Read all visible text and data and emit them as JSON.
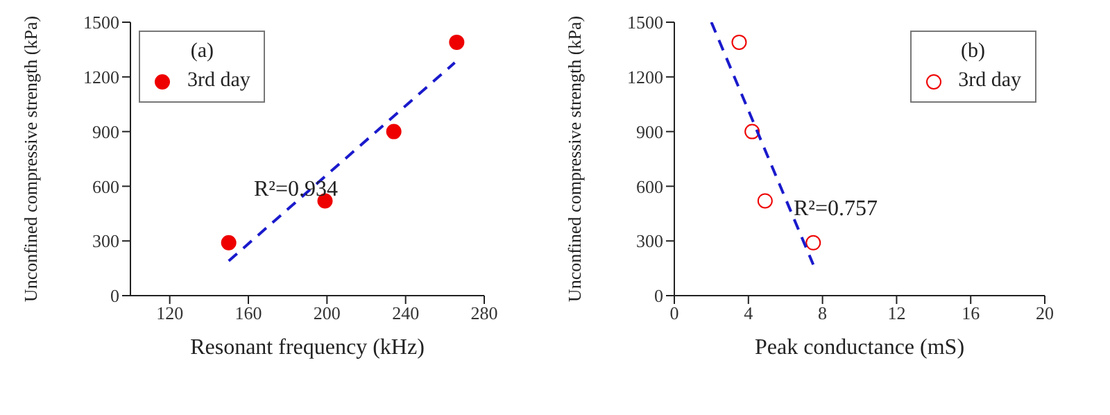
{
  "chart_data": [
    {
      "type": "scatter",
      "xlabel": "Resonant frequency (kHz)",
      "ylabel": "Unconfined compressive strength (kPa)",
      "legend_title": "(a)",
      "legend": "top left",
      "marker": "circle",
      "grid": false,
      "xlim": [
        100,
        280
      ],
      "xticks": [
        120,
        160,
        200,
        240,
        280
      ],
      "ylim": [
        0,
        1500
      ],
      "yticks": [
        0,
        300,
        600,
        900,
        1200,
        1500
      ],
      "series": [
        {
          "name": "3rd day",
          "color": "#ee0000",
          "x": [
            150,
            199,
            234,
            266
          ],
          "values": [
            290,
            520,
            900,
            1390
          ]
        },
        {
          "type": "line",
          "color": "#1a1acc",
          "line_style": "dashed",
          "marker": "none",
          "x": [
            150,
            265
          ],
          "values": [
            190,
            1278
          ]
        }
      ],
      "annotations": [
        "R²=0.934"
      ]
    },
    {
      "type": "scatter",
      "xlabel": "Peak conductance (mS)",
      "ylabel": "Unconfined compressive strength (kPa)",
      "legend_title": "(b)",
      "legend": "top right",
      "marker": "circle",
      "grid": false,
      "xlim": [
        0,
        20
      ],
      "xticks": [
        0,
        4,
        8,
        12,
        16,
        20
      ],
      "ylim": [
        0,
        1500
      ],
      "yticks": [
        0,
        300,
        600,
        900,
        1200,
        1500
      ],
      "series": [
        {
          "name": "3rd day",
          "color": "#ee0000",
          "x": [
            3.5,
            4.2,
            4.9,
            7.5
          ],
          "values": [
            1390,
            900,
            520,
            290
          ]
        },
        {
          "type": "line",
          "color": "#1a1acc",
          "line_style": "dashed",
          "marker": "none",
          "x": [
            2.0,
            7.5
          ],
          "values": [
            1500,
            170
          ]
        }
      ],
      "annotations": [
        "R²=0.757"
      ]
    }
  ]
}
